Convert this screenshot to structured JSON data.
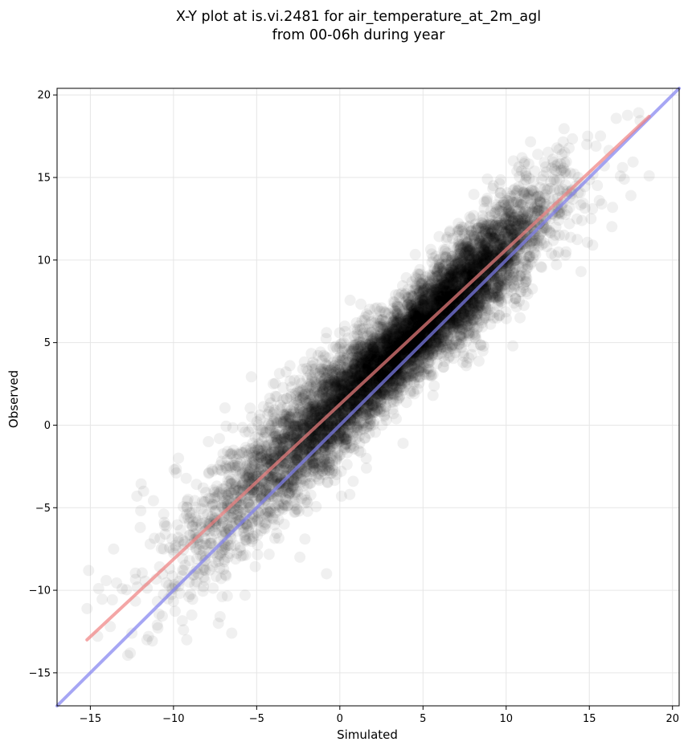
{
  "chart_data": {
    "type": "scatter",
    "title": "X-Y plot at is.vi.2481 for air_temperature_at_2m_agl",
    "subtitle": "from 00-06h during year",
    "xlabel": "Simulated",
    "ylabel": "Observed",
    "xlim": [
      -17,
      20.4
    ],
    "ylim": [
      -17,
      20.4
    ],
    "xticks": [
      -15,
      -10,
      -5,
      0,
      5,
      10,
      15,
      20
    ],
    "yticks": [
      -15,
      -10,
      -5,
      0,
      5,
      10,
      15,
      20
    ],
    "xtick_labels": [
      "−15",
      "−10",
      "−5",
      "0",
      "5",
      "10",
      "15",
      "20"
    ],
    "ytick_labels": [
      "−15",
      "−10",
      "−5",
      "0",
      "5",
      "10",
      "15",
      "20"
    ],
    "grid": true,
    "scatter_color": "#000000",
    "scatter_alpha": 0.06,
    "point_count_estimate": 8000,
    "fit_line": {
      "color": "#f08080",
      "x": [
        -15.2,
        18.6
      ],
      "y": [
        -13.0,
        18.7
      ]
    },
    "identity_line": {
      "color": "#8080f0",
      "x": [
        -17,
        20.4
      ],
      "y": [
        -17,
        20.4
      ]
    },
    "outliers": [
      [
        -15.1,
        -8.8
      ],
      [
        -14.5,
        -9.9
      ],
      [
        -13.6,
        -7.5
      ],
      [
        -12.6,
        -13.8
      ],
      [
        -12.2,
        -4.3
      ],
      [
        -11.8,
        -4.0
      ],
      [
        -11.6,
        -13.0
      ],
      [
        -11.5,
        -12.8
      ],
      [
        -9.7,
        -2.0
      ],
      [
        -9.4,
        -12.4
      ],
      [
        -9.2,
        -13.0
      ],
      [
        -8.9,
        -11.5
      ],
      [
        -7.9,
        -1.0
      ],
      [
        -7.3,
        -12.0
      ],
      [
        -7.2,
        -11.6
      ],
      [
        -6.5,
        -12.6
      ],
      [
        -5.7,
        -10.3
      ],
      [
        -5.3,
        0.5
      ],
      [
        -4.9,
        0.0
      ],
      [
        -3.0,
        3.6
      ],
      [
        -2.4,
        -8.0
      ],
      [
        -2.1,
        -6.9
      ],
      [
        -1.5,
        3.7
      ],
      [
        -0.8,
        5.6
      ],
      [
        -0.8,
        -9.0
      ],
      [
        0.6,
        -4.2
      ],
      [
        0.1,
        -4.3
      ],
      [
        0.3,
        6.0
      ],
      [
        0.8,
        -3.4
      ],
      [
        1.0,
        6.2
      ],
      [
        1.6,
        -2.6
      ],
      [
        3.8,
        -1.1
      ],
      [
        4.7,
        2.9
      ],
      [
        5.6,
        1.8
      ],
      [
        7.4,
        3.8
      ],
      [
        7.6,
        3.6
      ],
      [
        8.6,
        4.5
      ],
      [
        10.4,
        4.8
      ],
      [
        11.9,
        16.4
      ],
      [
        12.8,
        16.1
      ],
      [
        13.6,
        10.5
      ],
      [
        13.9,
        14.2
      ],
      [
        14.5,
        9.3
      ],
      [
        14.9,
        17.5
      ],
      [
        15.1,
        12.5
      ],
      [
        15.4,
        16.9
      ],
      [
        15.6,
        13.6
      ],
      [
        15.9,
        15.7
      ],
      [
        17.0,
        15.6
      ],
      [
        17.1,
        14.9
      ],
      [
        17.5,
        13.9
      ],
      [
        18.6,
        15.1
      ],
      [
        13.1,
        15.8
      ],
      [
        12.3,
        15.9
      ],
      [
        14.1,
        15.2
      ],
      [
        15.2,
        10.9
      ],
      [
        13.8,
        12.2
      ],
      [
        12.1,
        9.6
      ],
      [
        -13.8,
        -12.2
      ],
      [
        -12.5,
        -12.6
      ],
      [
        -12.0,
        -6.2
      ],
      [
        -11.4,
        -7.2
      ],
      [
        -10.5,
        -6.6
      ],
      [
        -4.0,
        2.5
      ],
      [
        -1.0,
        3.2
      ]
    ]
  }
}
